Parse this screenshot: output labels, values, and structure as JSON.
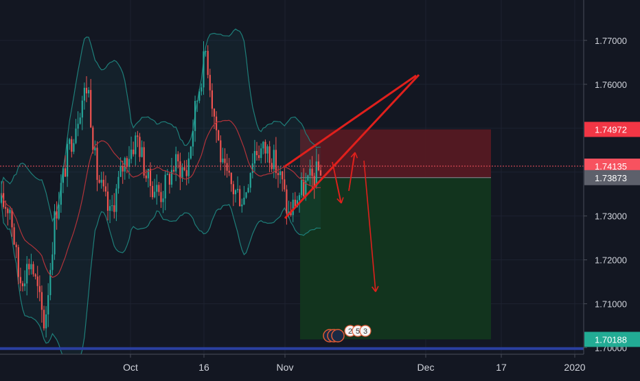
{
  "chart_data": {
    "type": "candlestick",
    "x_ticks": [
      "Oct",
      "16",
      "Nov",
      "Dec",
      "17",
      "2020"
    ],
    "y_ticks": [
      "1.77000",
      "1.76000",
      "1.73000",
      "1.72000",
      "1.71000",
      "1.70000"
    ],
    "ylim": [
      1.6985,
      1.7792
    ],
    "grid": true,
    "price_labels": [
      {
        "value": "1.74972",
        "color": "#f23645"
      },
      {
        "value": "1.74135",
        "color": "#f7525f"
      },
      {
        "value": "1.73873",
        "color": "#5d606b"
      },
      {
        "value": "1.70188",
        "color": "#22ab94"
      }
    ],
    "position": {
      "side": "short",
      "stop_loss": 1.74972,
      "entry": 1.73873,
      "take_profit": 1.70188
    },
    "support_level": 1.6998,
    "current_price": 1.74135,
    "event_markers": [
      "2",
      "5",
      "3"
    ],
    "indicators": [
      "Bollinger Bands",
      "Moving Average"
    ],
    "colors": {
      "background": "#131722",
      "up_candle": "#26a69a",
      "down_candle": "#ef5350",
      "bands": "#1e7f7a",
      "moving_average": "#b2333a",
      "annotation": "#e0201c",
      "support_line": "#2a3f9f",
      "stop_zone": "#5a1a22",
      "target_zone": "#12361f"
    }
  }
}
